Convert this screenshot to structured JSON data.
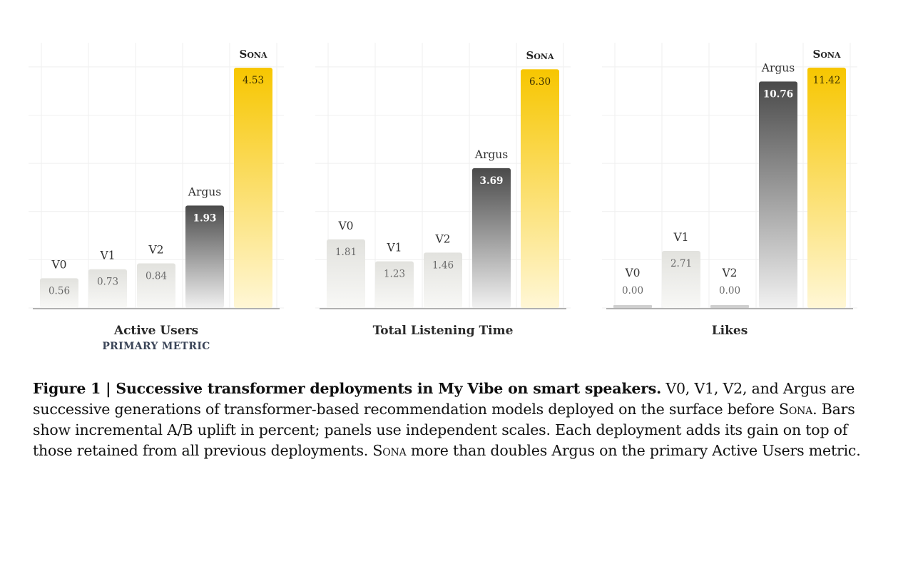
{
  "chart_data": [
    {
      "type": "bar",
      "title": "Active Users",
      "subtitle": "PRIMARY METRIC",
      "categories": [
        "V0",
        "V1",
        "V2",
        "Argus",
        "Sona"
      ],
      "values": [
        0.56,
        0.73,
        0.84,
        1.93,
        4.53
      ],
      "value_labels": [
        "0.56",
        "0.73",
        "0.84",
        "1.93",
        "4.53"
      ],
      "ylim": [
        0,
        5
      ],
      "grid": true
    },
    {
      "type": "bar",
      "title": "Total Listening Time",
      "categories": [
        "V0",
        "V1",
        "V2",
        "Argus",
        "Sona"
      ],
      "values": [
        1.81,
        1.23,
        1.46,
        3.69,
        6.3
      ],
      "value_labels": [
        "1.81",
        "1.23",
        "1.46",
        "3.69",
        "6.30"
      ],
      "ylim": [
        0,
        7
      ],
      "grid": true
    },
    {
      "type": "bar",
      "title": "Likes",
      "categories": [
        "V0",
        "V1",
        "V2",
        "Argus",
        "Sona"
      ],
      "values": [
        0.0,
        2.71,
        0.0,
        10.76,
        11.42
      ],
      "value_labels": [
        "0.00",
        "2.71",
        "0.00",
        "10.76",
        "11.42"
      ],
      "ylim": [
        0,
        12.6
      ],
      "grid": true
    }
  ],
  "colors": {
    "light_bar": "#e4e4e0",
    "argus_top": "#4a4a4a",
    "sona_top": "#f7c600",
    "axis": "#9a9a9a",
    "grid": "#efefef",
    "subtitle": "#3b4558"
  },
  "caption": {
    "lead": "Figure 1 | Successive transformer deployments in My Vibe on smart speakers.",
    "part1": " V0, V1, V2, and Argus are successive generations of transformer-based recommendation models deployed on the surface before ",
    "sona1": "Sona",
    "part2": ". Bars show incremental A/B uplift in percent; panels use independent scales. Each deployment adds its gain on top of those retained from all previous deployments. ",
    "sona2": "Sona",
    "part3": " more than doubles Argus on the primary Active Users metric."
  }
}
